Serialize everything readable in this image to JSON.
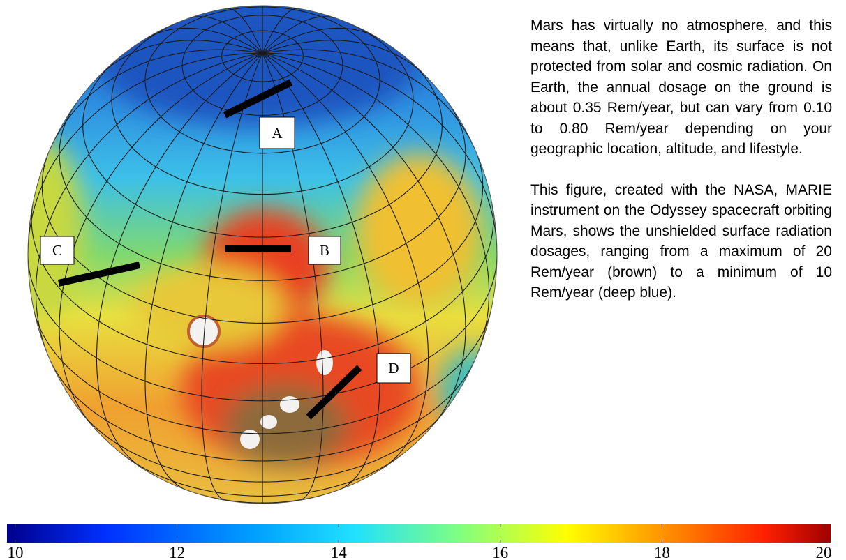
{
  "globe_labels": [
    "A",
    "B",
    "C",
    "D"
  ],
  "paragraphs": [
    "Mars has virtually no atmosphere, and this means that, unlike Earth, its surface is not protected from solar and cosmic radiation. On Earth, the annual dosage on the ground is about 0.35 Rem/year, but can vary from 0.10 to 0.80 Rem/year depending on your geographic location, altitude, and lifestyle.",
    "This figure, created with the NASA, MARIE instrument on the Odyssey spacecraft orbiting Mars, shows the unshielded surface radiation dosages, ranging from a maximum of 20 Rem/year (brown) to a minimum of 10 Rem/year (deep blue)."
  ],
  "colorbar": {
    "range": [
      10,
      20
    ],
    "ticks": [
      10,
      12,
      14,
      16,
      18,
      20
    ]
  }
}
